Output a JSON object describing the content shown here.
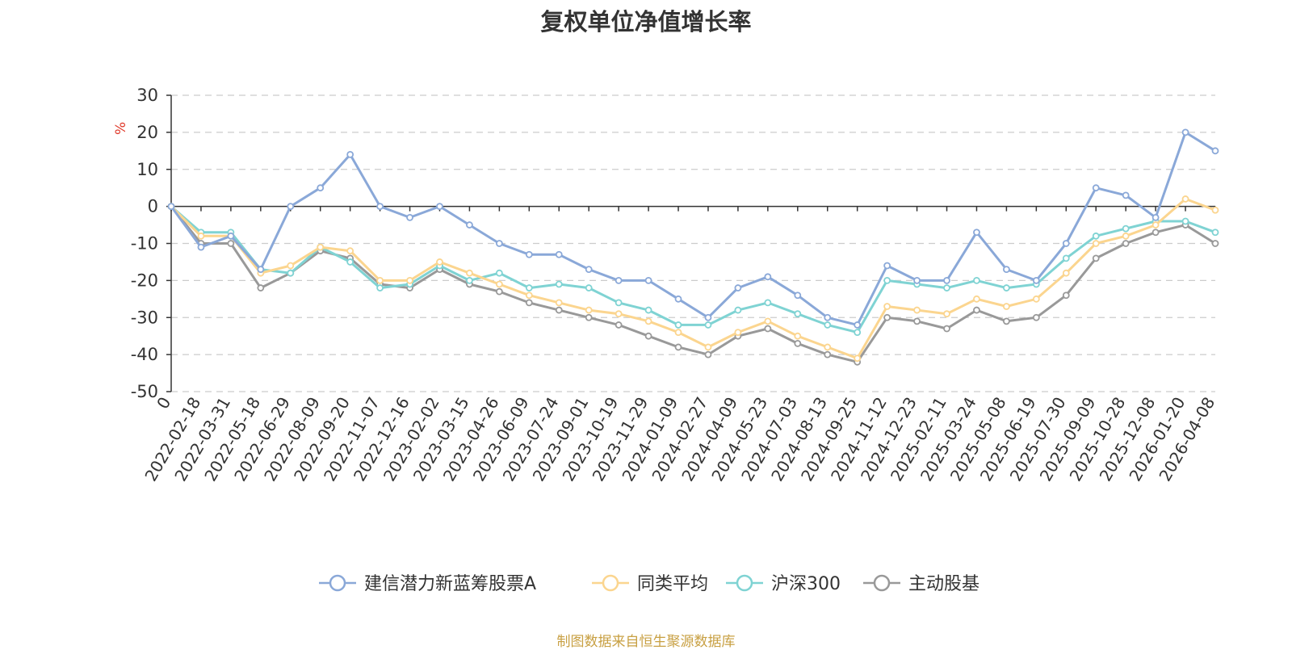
{
  "chart_data": {
    "type": "line",
    "title": "复权单位净值增长率",
    "ylabel": "%",
    "ylim": [
      -50,
      30
    ],
    "yticks": [
      30,
      20,
      10,
      0,
      -10,
      -20,
      -30,
      -40,
      -50
    ],
    "xlabel": "",
    "categories": [
      "0",
      "2022-02-18",
      "2022-03-31",
      "2022-05-18",
      "2022-06-29",
      "2022-08-09",
      "2022-09-20",
      "2022-11-07",
      "2022-12-16",
      "2023-02-02",
      "2023-03-15",
      "2023-04-26",
      "2023-06-09",
      "2023-07-24",
      "2023-09-01",
      "2023-10-19",
      "2023-11-29",
      "2024-01-09",
      "2024-02-27",
      "2024-04-09",
      "2024-05-23",
      "2024-07-03",
      "2024-08-13",
      "2024-09-25",
      "2024-11-12",
      "2024-12-23",
      "2025-02-11",
      "2025-03-24",
      "2025-05-08",
      "2025-06-19",
      "2025-07-30",
      "2025-09-09",
      "2025-10-28",
      "2025-12-08",
      "2026-01-20",
      "2026-04-08"
    ],
    "grid": true,
    "legend_position": "bottom-center",
    "series": [
      {
        "name": "建信潜力新蓝筹股票A",
        "color": "#8aa8d8",
        "values": [
          0,
          -11,
          -8,
          -17,
          0,
          5,
          14,
          0,
          -3,
          0,
          -5,
          -10,
          -13,
          -13,
          -17,
          -20,
          -20,
          -25,
          -30,
          -22,
          -19,
          -24,
          -30,
          -32,
          -16,
          -20,
          -20,
          -7,
          -17,
          -20,
          -10,
          5,
          3,
          -3,
          20,
          15
        ]
      },
      {
        "name": "同类平均",
        "color": "#fbd58f",
        "values": [
          0,
          -8,
          -8,
          -18,
          -16,
          -11,
          -12,
          -20,
          -20,
          -15,
          -18,
          -21,
          -24,
          -26,
          -28,
          -29,
          -31,
          -34,
          -38,
          -34,
          -31,
          -35,
          -38,
          -41,
          -27,
          -28,
          -29,
          -25,
          -27,
          -25,
          -18,
          -10,
          -8,
          -5,
          2,
          -1
        ]
      },
      {
        "name": "沪深300",
        "color": "#7fd3d3",
        "values": [
          0,
          -7,
          -7,
          -17,
          -18,
          -11,
          -15,
          -22,
          -21,
          -16,
          -20,
          -18,
          -22,
          -21,
          -22,
          -26,
          -28,
          -32,
          -32,
          -28,
          -26,
          -29,
          -32,
          -34,
          -20,
          -21,
          -22,
          -20,
          -22,
          -21,
          -14,
          -8,
          -6,
          -4,
          -4,
          -7
        ]
      },
      {
        "name": "主动股基",
        "color": "#999999",
        "values": [
          0,
          -10,
          -10,
          -22,
          -18,
          -12,
          -14,
          -21,
          -22,
          -17,
          -21,
          -23,
          -26,
          -28,
          -30,
          -32,
          -35,
          -38,
          -40,
          -35,
          -33,
          -37,
          -40,
          -42,
          -30,
          -31,
          -33,
          -28,
          -31,
          -30,
          -24,
          -14,
          -10,
          -7,
          -5,
          -10
        ]
      }
    ]
  },
  "footer_text": "制图数据来自恒生聚源数据库"
}
